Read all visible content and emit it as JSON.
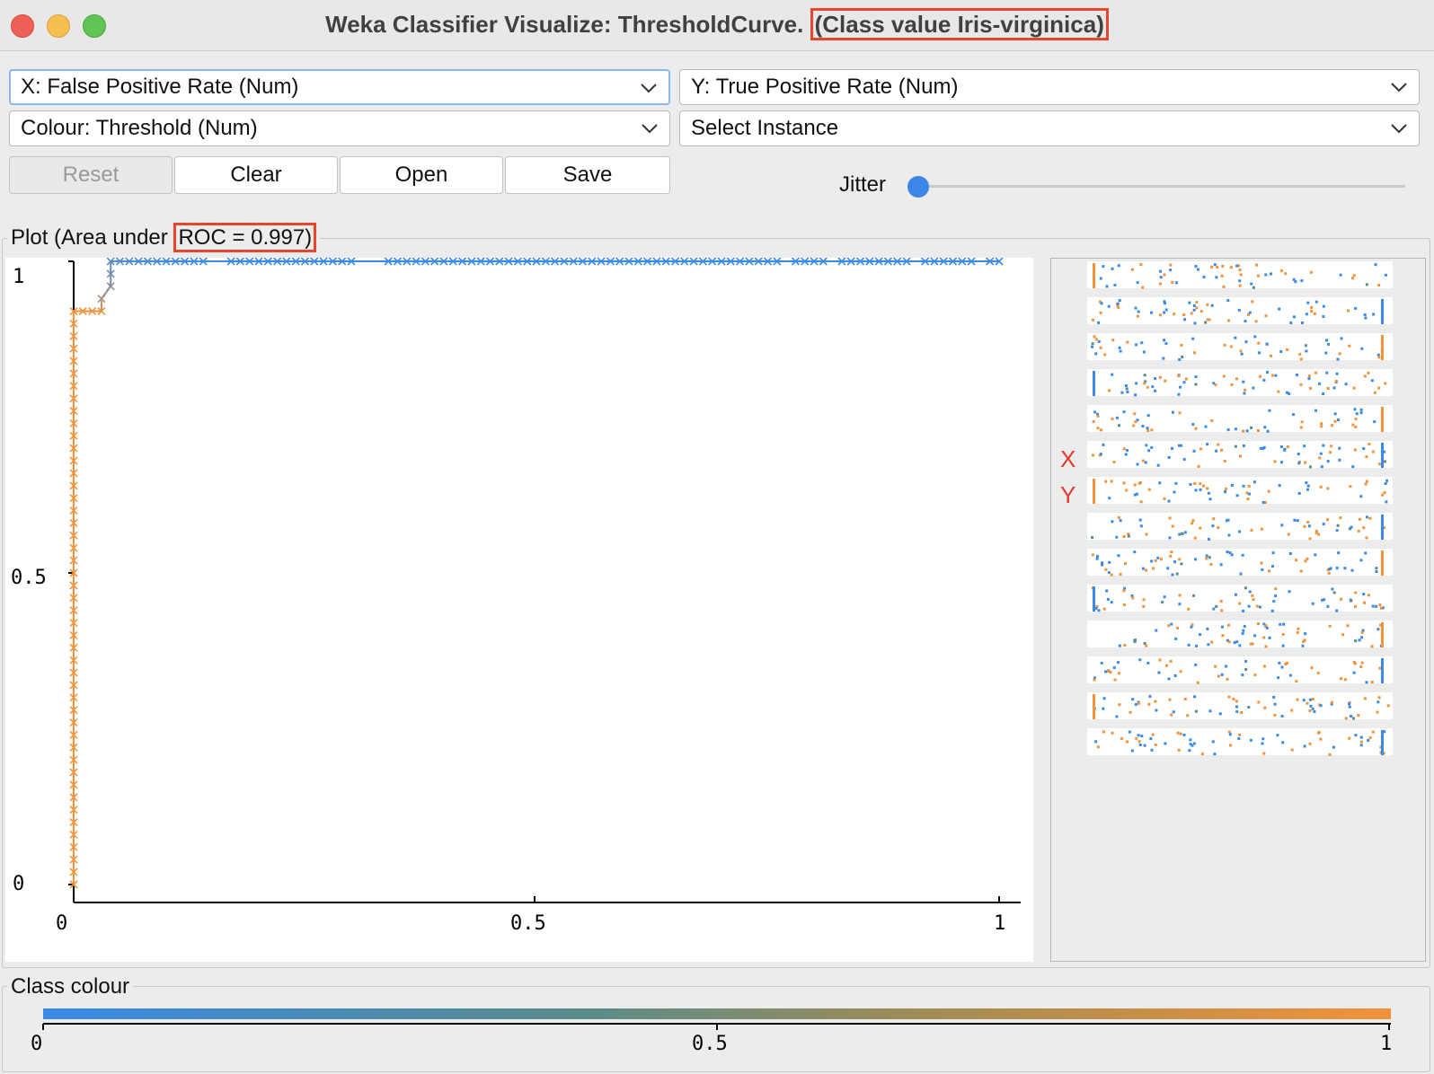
{
  "window": {
    "title_prefix": "Weka Classifier Visualize: ThresholdCurve.",
    "title_highlight": "(Class value Iris-virginica)"
  },
  "controls": {
    "x_axis": "X: False Positive Rate (Num)",
    "y_axis": "Y: True Positive Rate (Num)",
    "colour": "Colour: Threshold (Num)",
    "select_instance": "Select Instance",
    "reset": "Reset",
    "clear": "Clear",
    "open": "Open",
    "save": "Save",
    "jitter_label": "Jitter",
    "jitter_value": 0
  },
  "plot": {
    "legend_prefix": "Plot (Area under",
    "legend_highlight": "ROC = 0.997)"
  },
  "side": {
    "x_marker": "X",
    "y_marker": "Y"
  },
  "class_colour": {
    "legend": "Class colour",
    "ticks": [
      "0",
      "0.5",
      "1"
    ],
    "gradient_colors": [
      "#3a8be8",
      "#f2923a"
    ]
  },
  "chart_data": {
    "type": "scatter",
    "marker": "cross",
    "xlim": [
      0,
      1
    ],
    "ylim": [
      0,
      1
    ],
    "x_ticks": [
      "0",
      "0.5",
      "1"
    ],
    "y_ticks": [
      "0",
      "0.5",
      "1"
    ],
    "color_low": "#3a8be8",
    "color_high": "#f2923a",
    "points": [
      {
        "x": 0,
        "y": 0.0,
        "c": 1.0
      },
      {
        "x": 0,
        "y": 0.02,
        "c": 1.0
      },
      {
        "x": 0,
        "y": 0.04,
        "c": 1.0
      },
      {
        "x": 0,
        "y": 0.06,
        "c": 1.0
      },
      {
        "x": 0,
        "y": 0.08,
        "c": 1.0
      },
      {
        "x": 0,
        "y": 0.1,
        "c": 1.0
      },
      {
        "x": 0,
        "y": 0.12,
        "c": 1.0
      },
      {
        "x": 0,
        "y": 0.14,
        "c": 1.0
      },
      {
        "x": 0,
        "y": 0.16,
        "c": 1.0
      },
      {
        "x": 0,
        "y": 0.18,
        "c": 1.0
      },
      {
        "x": 0,
        "y": 0.2,
        "c": 1.0
      },
      {
        "x": 0,
        "y": 0.22,
        "c": 1.0
      },
      {
        "x": 0,
        "y": 0.24,
        "c": 1.0
      },
      {
        "x": 0,
        "y": 0.26,
        "c": 1.0
      },
      {
        "x": 0,
        "y": 0.28,
        "c": 1.0
      },
      {
        "x": 0,
        "y": 0.3,
        "c": 1.0
      },
      {
        "x": 0,
        "y": 0.32,
        "c": 1.0
      },
      {
        "x": 0,
        "y": 0.34,
        "c": 1.0
      },
      {
        "x": 0,
        "y": 0.36,
        "c": 1.0
      },
      {
        "x": 0,
        "y": 0.38,
        "c": 1.0
      },
      {
        "x": 0,
        "y": 0.4,
        "c": 1.0
      },
      {
        "x": 0,
        "y": 0.42,
        "c": 1.0
      },
      {
        "x": 0,
        "y": 0.44,
        "c": 1.0
      },
      {
        "x": 0,
        "y": 0.46,
        "c": 1.0
      },
      {
        "x": 0,
        "y": 0.48,
        "c": 1.0
      },
      {
        "x": 0,
        "y": 0.5,
        "c": 1.0
      },
      {
        "x": 0,
        "y": 0.52,
        "c": 1.0
      },
      {
        "x": 0,
        "y": 0.54,
        "c": 1.0
      },
      {
        "x": 0,
        "y": 0.56,
        "c": 1.0
      },
      {
        "x": 0,
        "y": 0.58,
        "c": 1.0
      },
      {
        "x": 0,
        "y": 0.6,
        "c": 1.0
      },
      {
        "x": 0,
        "y": 0.62,
        "c": 1.0
      },
      {
        "x": 0,
        "y": 0.64,
        "c": 1.0
      },
      {
        "x": 0,
        "y": 0.66,
        "c": 1.0
      },
      {
        "x": 0,
        "y": 0.68,
        "c": 1.0
      },
      {
        "x": 0,
        "y": 0.7,
        "c": 1.0
      },
      {
        "x": 0,
        "y": 0.72,
        "c": 1.0
      },
      {
        "x": 0,
        "y": 0.74,
        "c": 1.0
      },
      {
        "x": 0,
        "y": 0.76,
        "c": 1.0
      },
      {
        "x": 0,
        "y": 0.78,
        "c": 1.0
      },
      {
        "x": 0,
        "y": 0.8,
        "c": 1.0
      },
      {
        "x": 0,
        "y": 0.82,
        "c": 1.0
      },
      {
        "x": 0,
        "y": 0.84,
        "c": 1.0
      },
      {
        "x": 0,
        "y": 0.86,
        "c": 1.0
      },
      {
        "x": 0,
        "y": 0.88,
        "c": 1.0
      },
      {
        "x": 0,
        "y": 0.9,
        "c": 1.0
      },
      {
        "x": 0,
        "y": 0.92,
        "c": 1.0
      },
      {
        "x": 0.01,
        "y": 0.92,
        "c": 0.98
      },
      {
        "x": 0.02,
        "y": 0.92,
        "c": 0.97
      },
      {
        "x": 0.03,
        "y": 0.92,
        "c": 0.95
      },
      {
        "x": 0.03,
        "y": 0.94,
        "c": 0.6
      },
      {
        "x": 0.04,
        "y": 0.96,
        "c": 0.45
      },
      {
        "x": 0.04,
        "y": 0.98,
        "c": 0.3
      },
      {
        "x": 0.04,
        "y": 1.0,
        "c": 0.2
      },
      {
        "x": 0.05,
        "y": 1.0,
        "c": 0.15
      },
      {
        "x": 0.06,
        "y": 1.0,
        "c": 0.12
      },
      {
        "x": 0.07,
        "y": 1.0,
        "c": 0.1
      },
      {
        "x": 0.08,
        "y": 1.0,
        "c": 0.08
      },
      {
        "x": 0.09,
        "y": 1.0,
        "c": 0.06
      },
      {
        "x": 0.1,
        "y": 1.0,
        "c": 0.05
      },
      {
        "x": 0.11,
        "y": 1.0,
        "c": 0.04
      },
      {
        "x": 0.12,
        "y": 1.0,
        "c": 0.03
      },
      {
        "x": 0.13,
        "y": 1.0,
        "c": 0.02
      },
      {
        "x": 0.14,
        "y": 1.0,
        "c": 0.02
      },
      {
        "x": 0.17,
        "y": 1.0,
        "c": 0.01
      },
      {
        "x": 0.18,
        "y": 1.0,
        "c": 0.01
      },
      {
        "x": 0.19,
        "y": 1.0,
        "c": 0.01
      },
      {
        "x": 0.2,
        "y": 1.0,
        "c": 0.01
      },
      {
        "x": 0.21,
        "y": 1.0,
        "c": 0.01
      },
      {
        "x": 0.22,
        "y": 1.0,
        "c": 0.01
      },
      {
        "x": 0.23,
        "y": 1.0,
        "c": 0.01
      },
      {
        "x": 0.24,
        "y": 1.0,
        "c": 0.01
      },
      {
        "x": 0.25,
        "y": 1.0,
        "c": 0.01
      },
      {
        "x": 0.26,
        "y": 1.0,
        "c": 0.01
      },
      {
        "x": 0.27,
        "y": 1.0,
        "c": 0.01
      },
      {
        "x": 0.28,
        "y": 1.0,
        "c": 0.0
      },
      {
        "x": 0.29,
        "y": 1.0,
        "c": 0.0
      },
      {
        "x": 0.3,
        "y": 1.0,
        "c": 0.0
      },
      {
        "x": 0.34,
        "y": 1.0,
        "c": 0.0
      },
      {
        "x": 0.35,
        "y": 1.0,
        "c": 0.0
      },
      {
        "x": 0.36,
        "y": 1.0,
        "c": 0.0
      },
      {
        "x": 0.37,
        "y": 1.0,
        "c": 0.0
      },
      {
        "x": 0.38,
        "y": 1.0,
        "c": 0.0
      },
      {
        "x": 0.39,
        "y": 1.0,
        "c": 0.0
      },
      {
        "x": 0.4,
        "y": 1.0,
        "c": 0.0
      },
      {
        "x": 0.41,
        "y": 1.0,
        "c": 0.0
      },
      {
        "x": 0.42,
        "y": 1.0,
        "c": 0.0
      },
      {
        "x": 0.43,
        "y": 1.0,
        "c": 0.0
      },
      {
        "x": 0.44,
        "y": 1.0,
        "c": 0.0
      },
      {
        "x": 0.45,
        "y": 1.0,
        "c": 0.0
      },
      {
        "x": 0.46,
        "y": 1.0,
        "c": 0.0
      },
      {
        "x": 0.47,
        "y": 1.0,
        "c": 0.0
      },
      {
        "x": 0.48,
        "y": 1.0,
        "c": 0.0
      },
      {
        "x": 0.49,
        "y": 1.0,
        "c": 0.0
      },
      {
        "x": 0.5,
        "y": 1.0,
        "c": 0.0
      },
      {
        "x": 0.51,
        "y": 1.0,
        "c": 0.0
      },
      {
        "x": 0.52,
        "y": 1.0,
        "c": 0.0
      },
      {
        "x": 0.53,
        "y": 1.0,
        "c": 0.0
      },
      {
        "x": 0.54,
        "y": 1.0,
        "c": 0.0
      },
      {
        "x": 0.55,
        "y": 1.0,
        "c": 0.0
      },
      {
        "x": 0.56,
        "y": 1.0,
        "c": 0.0
      },
      {
        "x": 0.57,
        "y": 1.0,
        "c": 0.0
      },
      {
        "x": 0.58,
        "y": 1.0,
        "c": 0.0
      },
      {
        "x": 0.59,
        "y": 1.0,
        "c": 0.0
      },
      {
        "x": 0.6,
        "y": 1.0,
        "c": 0.0
      },
      {
        "x": 0.61,
        "y": 1.0,
        "c": 0.0
      },
      {
        "x": 0.62,
        "y": 1.0,
        "c": 0.0
      },
      {
        "x": 0.63,
        "y": 1.0,
        "c": 0.0
      },
      {
        "x": 0.64,
        "y": 1.0,
        "c": 0.0
      },
      {
        "x": 0.65,
        "y": 1.0,
        "c": 0.0
      },
      {
        "x": 0.66,
        "y": 1.0,
        "c": 0.0
      },
      {
        "x": 0.67,
        "y": 1.0,
        "c": 0.0
      },
      {
        "x": 0.68,
        "y": 1.0,
        "c": 0.0
      },
      {
        "x": 0.69,
        "y": 1.0,
        "c": 0.0
      },
      {
        "x": 0.7,
        "y": 1.0,
        "c": 0.0
      },
      {
        "x": 0.71,
        "y": 1.0,
        "c": 0.0
      },
      {
        "x": 0.72,
        "y": 1.0,
        "c": 0.0
      },
      {
        "x": 0.73,
        "y": 1.0,
        "c": 0.0
      },
      {
        "x": 0.74,
        "y": 1.0,
        "c": 0.0
      },
      {
        "x": 0.75,
        "y": 1.0,
        "c": 0.0
      },
      {
        "x": 0.76,
        "y": 1.0,
        "c": 0.0
      },
      {
        "x": 0.78,
        "y": 1.0,
        "c": 0.0
      },
      {
        "x": 0.79,
        "y": 1.0,
        "c": 0.0
      },
      {
        "x": 0.8,
        "y": 1.0,
        "c": 0.0
      },
      {
        "x": 0.81,
        "y": 1.0,
        "c": 0.0
      },
      {
        "x": 0.83,
        "y": 1.0,
        "c": 0.0
      },
      {
        "x": 0.84,
        "y": 1.0,
        "c": 0.0
      },
      {
        "x": 0.85,
        "y": 1.0,
        "c": 0.0
      },
      {
        "x": 0.86,
        "y": 1.0,
        "c": 0.0
      },
      {
        "x": 0.87,
        "y": 1.0,
        "c": 0.0
      },
      {
        "x": 0.88,
        "y": 1.0,
        "c": 0.0
      },
      {
        "x": 0.89,
        "y": 1.0,
        "c": 0.0
      },
      {
        "x": 0.9,
        "y": 1.0,
        "c": 0.0
      },
      {
        "x": 0.92,
        "y": 1.0,
        "c": 0.0
      },
      {
        "x": 0.93,
        "y": 1.0,
        "c": 0.0
      },
      {
        "x": 0.94,
        "y": 1.0,
        "c": 0.0
      },
      {
        "x": 0.95,
        "y": 1.0,
        "c": 0.0
      },
      {
        "x": 0.96,
        "y": 1.0,
        "c": 0.0
      },
      {
        "x": 0.97,
        "y": 1.0,
        "c": 0.0
      },
      {
        "x": 0.99,
        "y": 1.0,
        "c": 0.0
      },
      {
        "x": 1.0,
        "y": 1.0,
        "c": 0.0
      }
    ]
  }
}
